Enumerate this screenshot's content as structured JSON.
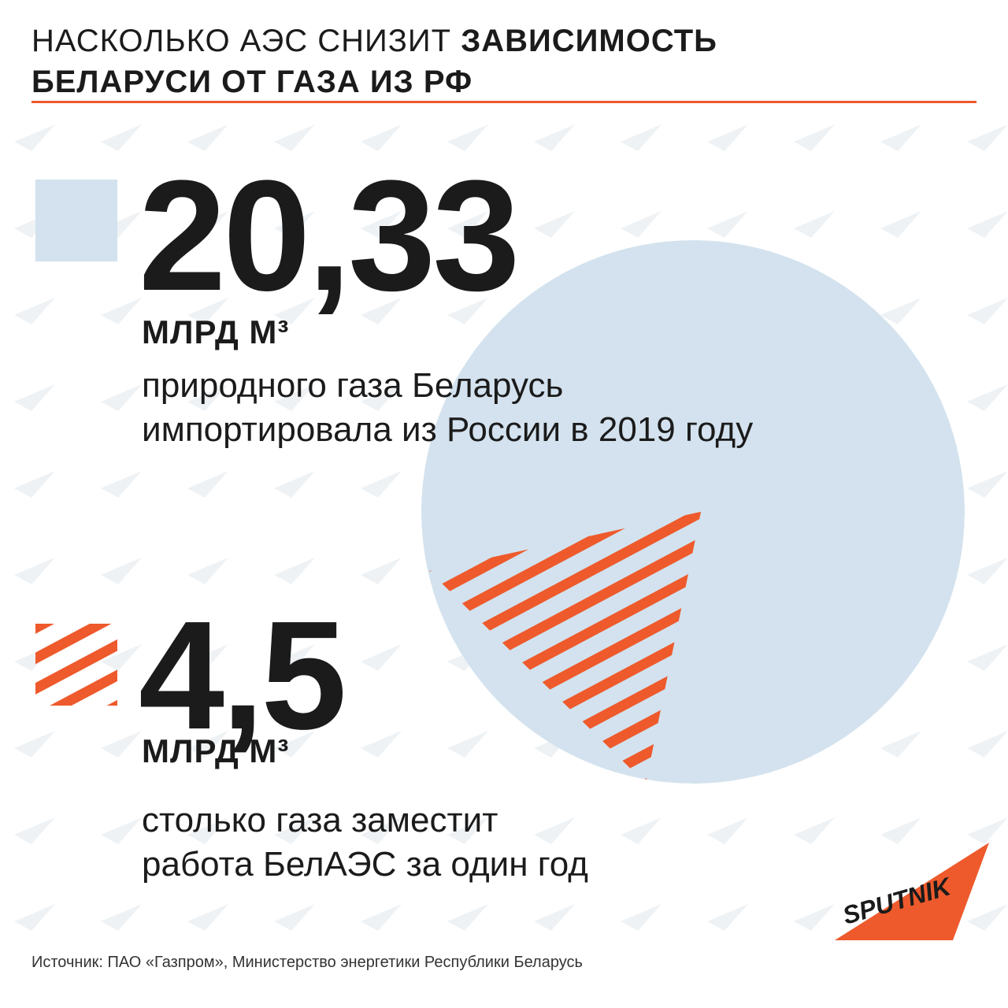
{
  "title": {
    "part_light": "НАСКОЛЬКО АЭС СНИЗИТ ",
    "part_bold_1": "ЗАВИСИМОСТЬ",
    "part_bold_2": "БЕЛАРУСИ ОТ ГАЗА ИЗ РФ"
  },
  "colors": {
    "accent": "#ee5a2c",
    "pie_fill": "#d3e2ee",
    "text": "#1b1b1b"
  },
  "chart_data": {
    "type": "pie",
    "title": "НАСКОЛЬКО АЭС СНИЗИТ ЗАВИСИМОСТЬ БЕЛАРУСИ ОТ ГАЗА ИЗ РФ",
    "unit": "МЛРД М³",
    "total": 20.33,
    "slices": [
      {
        "value": 20.33,
        "style": "solid",
        "color": "#d3e2ee"
      },
      {
        "value": 4.5,
        "style": "hatched",
        "color": "#ee5a2c"
      }
    ]
  },
  "stats": [
    {
      "value": "20,33",
      "unit": "МЛРД М³",
      "caption_line1": "природного газа Беларусь",
      "caption_line2": "импортировала из России в 2019 году",
      "swatch": "solid"
    },
    {
      "value": "4,5",
      "unit": "МЛРД М³",
      "caption_line1": "столько газа заместит",
      "caption_line2": "работа БелАЭС за один год",
      "swatch": "hatched"
    }
  ],
  "source": "Источник: ПАО «Газпром», Министерство энергетики Республики Беларусь",
  "logo": {
    "text": "SPUTNIK",
    "icon": "sputnik-logo-icon"
  }
}
